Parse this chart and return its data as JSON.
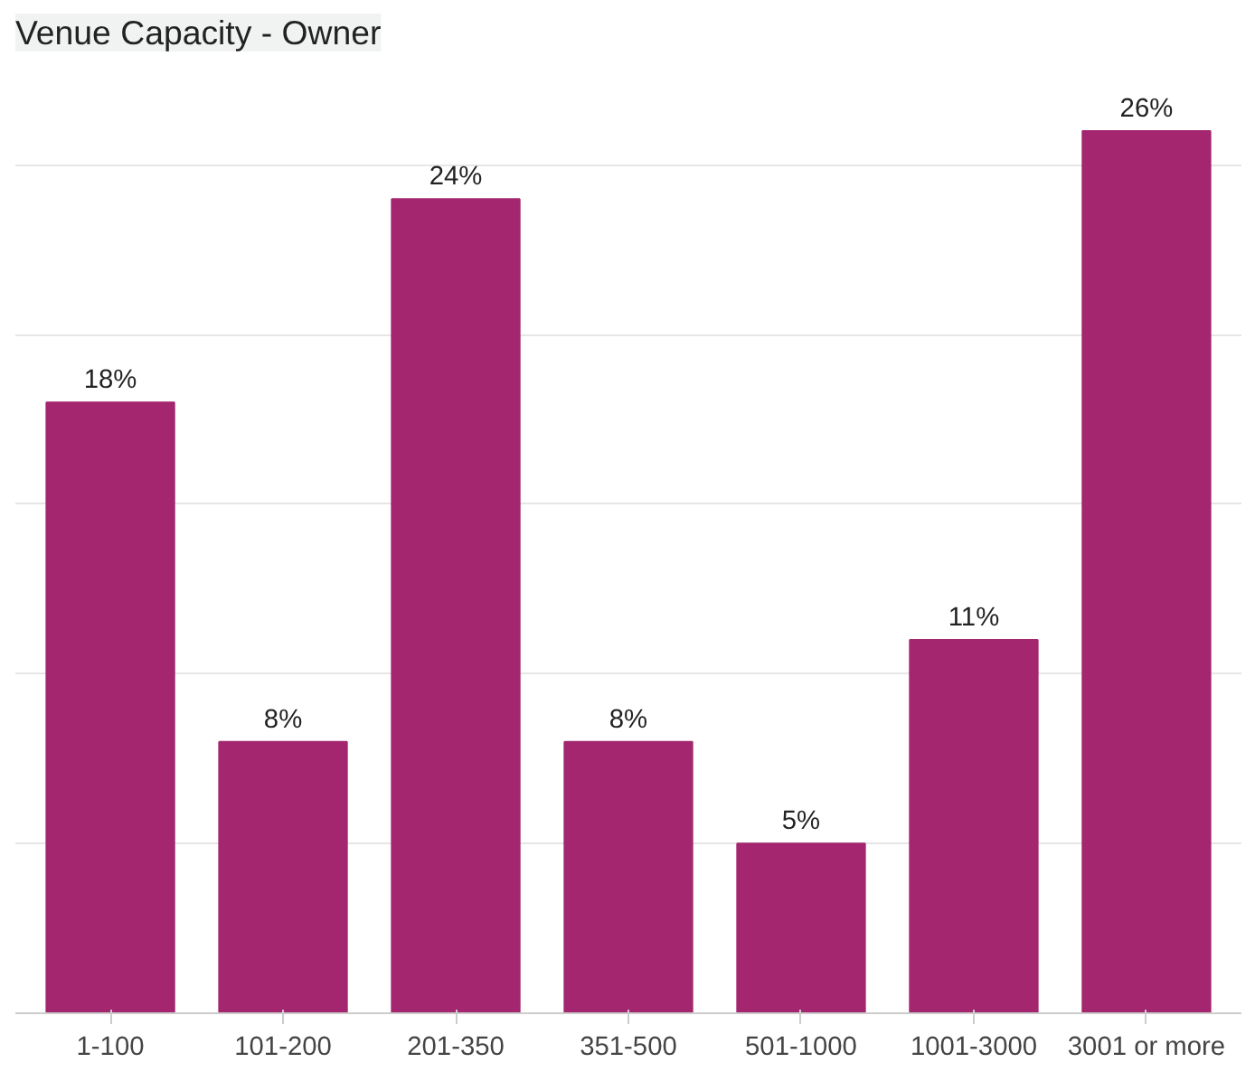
{
  "chart_data": {
    "type": "bar",
    "title": "Venue Capacity - Owner",
    "categories": [
      "1-100",
      "101-200",
      "201-350",
      "351-500",
      "501-1000",
      "1001-3000",
      "3001 or more"
    ],
    "values": [
      18,
      8,
      24,
      8,
      5,
      11,
      26
    ],
    "value_labels": [
      "18%",
      "8%",
      "24%",
      "8%",
      "5%",
      "11%",
      "26%"
    ],
    "color": "#a3266f",
    "tick_labels": "x",
    "grid": "y"
  }
}
